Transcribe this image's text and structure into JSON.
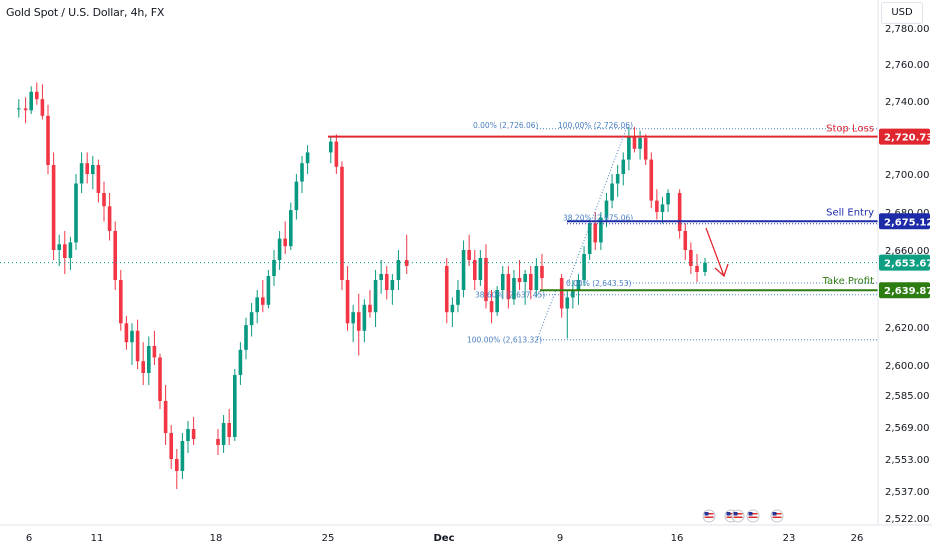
{
  "header": {
    "title": "Gold Spot / U.S. Dollar, 4h, FX",
    "currency": "USD"
  },
  "colors": {
    "bull": "#089981",
    "bear": "#f23645",
    "stop_loss": "#e0262f",
    "sell_entry": "#1e2ba8",
    "take_profit": "#2e7d12",
    "last_price": "#0e9f83",
    "fib": "#4a7fc1",
    "arrow": "#e0262f"
  },
  "chart_data": {
    "type": "candlestick",
    "symbol": "Gold Spot / U.S. Dollar",
    "timeframe": "4h",
    "exchange": "FX",
    "y_axis": {
      "ticks": [
        "2,780.00",
        "2,760.00",
        "2,740.00",
        "2,720.00",
        "2,700.00",
        "2,680.00",
        "2,660.00",
        "2,640.00",
        "2,620.00",
        "2,600.00",
        "2,585.00",
        "2,569.00",
        "2,553.00",
        "2,537.00",
        "2,522.00"
      ],
      "tick_values": [
        2780,
        2760,
        2740,
        2720,
        2700,
        2680,
        2660,
        2640,
        2620,
        2600,
        2585,
        2569,
        2553,
        2537,
        2522
      ]
    },
    "x_axis": {
      "labels": [
        "6",
        "11",
        "18",
        "25",
        "Dec",
        "9",
        "16",
        "23",
        "26"
      ],
      "label_dates": [
        "2024-11-06",
        "2024-11-11",
        "2024-11-18",
        "2024-11-25",
        "2024-12-02",
        "2024-12-09",
        "2024-12-16",
        "2024-12-23",
        "2024-12-26"
      ]
    },
    "candles": [
      {
        "date": "2024-11-05",
        "o": 2736,
        "h": 2741,
        "l": 2731,
        "c": 2736
      },
      {
        "date": "2024-11-05",
        "o": 2736,
        "h": 2742,
        "l": 2728,
        "c": 2735
      },
      {
        "date": "2024-11-06",
        "o": 2735,
        "h": 2748,
        "l": 2733,
        "c": 2745
      },
      {
        "date": "2024-11-06",
        "o": 2745,
        "h": 2750,
        "l": 2738,
        "c": 2741
      },
      {
        "date": "2024-11-06",
        "o": 2741,
        "h": 2749,
        "l": 2730,
        "c": 2732
      },
      {
        "date": "2024-11-06",
        "o": 2732,
        "h": 2738,
        "l": 2700,
        "c": 2705
      },
      {
        "date": "2024-11-06",
        "o": 2705,
        "h": 2712,
        "l": 2655,
        "c": 2660
      },
      {
        "date": "2024-11-07",
        "o": 2660,
        "h": 2668,
        "l": 2652,
        "c": 2663
      },
      {
        "date": "2024-11-07",
        "o": 2663,
        "h": 2670,
        "l": 2648,
        "c": 2656
      },
      {
        "date": "2024-11-07",
        "o": 2656,
        "h": 2667,
        "l": 2650,
        "c": 2664
      },
      {
        "date": "2024-11-07",
        "o": 2664,
        "h": 2700,
        "l": 2660,
        "c": 2695
      },
      {
        "date": "2024-11-07",
        "o": 2695,
        "h": 2712,
        "l": 2690,
        "c": 2706
      },
      {
        "date": "2024-11-08",
        "o": 2706,
        "h": 2712,
        "l": 2695,
        "c": 2700
      },
      {
        "date": "2024-11-08",
        "o": 2700,
        "h": 2710,
        "l": 2692,
        "c": 2705
      },
      {
        "date": "2024-11-08",
        "o": 2705,
        "h": 2708,
        "l": 2685,
        "c": 2690
      },
      {
        "date": "2024-11-08",
        "o": 2690,
        "h": 2696,
        "l": 2675,
        "c": 2683
      },
      {
        "date": "2024-11-11",
        "o": 2683,
        "h": 2690,
        "l": 2665,
        "c": 2670
      },
      {
        "date": "2024-11-11",
        "o": 2670,
        "h": 2675,
        "l": 2640,
        "c": 2645
      },
      {
        "date": "2024-11-11",
        "o": 2645,
        "h": 2650,
        "l": 2618,
        "c": 2622
      },
      {
        "date": "2024-11-12",
        "o": 2622,
        "h": 2626,
        "l": 2608,
        "c": 2612
      },
      {
        "date": "2024-11-12",
        "o": 2612,
        "h": 2622,
        "l": 2600,
        "c": 2618
      },
      {
        "date": "2024-11-12",
        "o": 2618,
        "h": 2624,
        "l": 2598,
        "c": 2602
      },
      {
        "date": "2024-11-13",
        "o": 2602,
        "h": 2612,
        "l": 2590,
        "c": 2596
      },
      {
        "date": "2024-11-13",
        "o": 2596,
        "h": 2615,
        "l": 2590,
        "c": 2610
      },
      {
        "date": "2024-11-13",
        "o": 2610,
        "h": 2618,
        "l": 2600,
        "c": 2604
      },
      {
        "date": "2024-11-14",
        "o": 2604,
        "h": 2606,
        "l": 2578,
        "c": 2582
      },
      {
        "date": "2024-11-14",
        "o": 2582,
        "h": 2590,
        "l": 2560,
        "c": 2566
      },
      {
        "date": "2024-11-14",
        "o": 2566,
        "h": 2570,
        "l": 2548,
        "c": 2553
      },
      {
        "date": "2024-11-15",
        "o": 2553,
        "h": 2558,
        "l": 2538,
        "c": 2547
      },
      {
        "date": "2024-11-15",
        "o": 2547,
        "h": 2566,
        "l": 2543,
        "c": 2562
      },
      {
        "date": "2024-11-15",
        "o": 2562,
        "h": 2572,
        "l": 2556,
        "c": 2568
      },
      {
        "date": "2024-11-15",
        "o": 2568,
        "h": 2574,
        "l": 2560,
        "c": 2563
      },
      {
        "date": "2024-11-18",
        "o": 2563,
        "h": 2568,
        "l": 2555,
        "c": 2560
      },
      {
        "date": "2024-11-18",
        "o": 2560,
        "h": 2575,
        "l": 2556,
        "c": 2571
      },
      {
        "date": "2024-11-18",
        "o": 2571,
        "h": 2578,
        "l": 2560,
        "c": 2564
      },
      {
        "date": "2024-11-18",
        "o": 2564,
        "h": 2598,
        "l": 2562,
        "c": 2595
      },
      {
        "date": "2024-11-19",
        "o": 2595,
        "h": 2612,
        "l": 2590,
        "c": 2608
      },
      {
        "date": "2024-11-19",
        "o": 2608,
        "h": 2625,
        "l": 2603,
        "c": 2621
      },
      {
        "date": "2024-11-19",
        "o": 2621,
        "h": 2633,
        "l": 2615,
        "c": 2628
      },
      {
        "date": "2024-11-20",
        "o": 2628,
        "h": 2640,
        "l": 2622,
        "c": 2636
      },
      {
        "date": "2024-11-20",
        "o": 2636,
        "h": 2645,
        "l": 2628,
        "c": 2632
      },
      {
        "date": "2024-11-20",
        "o": 2632,
        "h": 2650,
        "l": 2630,
        "c": 2647
      },
      {
        "date": "2024-11-21",
        "o": 2647,
        "h": 2660,
        "l": 2642,
        "c": 2655
      },
      {
        "date": "2024-11-21",
        "o": 2655,
        "h": 2670,
        "l": 2650,
        "c": 2666
      },
      {
        "date": "2024-11-21",
        "o": 2666,
        "h": 2675,
        "l": 2658,
        "c": 2662
      },
      {
        "date": "2024-11-22",
        "o": 2662,
        "h": 2685,
        "l": 2660,
        "c": 2681
      },
      {
        "date": "2024-11-22",
        "o": 2681,
        "h": 2700,
        "l": 2676,
        "c": 2696
      },
      {
        "date": "2024-11-22",
        "o": 2696,
        "h": 2710,
        "l": 2690,
        "c": 2706
      },
      {
        "date": "2024-11-22",
        "o": 2706,
        "h": 2716,
        "l": 2700,
        "c": 2712
      },
      {
        "date": "2024-11-25",
        "o": 2712,
        "h": 2721,
        "l": 2706,
        "c": 2718
      },
      {
        "date": "2024-11-25",
        "o": 2718,
        "h": 2722,
        "l": 2700,
        "c": 2704
      },
      {
        "date": "2024-11-25",
        "o": 2704,
        "h": 2707,
        "l": 2640,
        "c": 2645
      },
      {
        "date": "2024-11-26",
        "o": 2645,
        "h": 2652,
        "l": 2618,
        "c": 2622
      },
      {
        "date": "2024-11-26",
        "o": 2622,
        "h": 2632,
        "l": 2612,
        "c": 2628
      },
      {
        "date": "2024-11-26",
        "o": 2628,
        "h": 2638,
        "l": 2605,
        "c": 2618
      },
      {
        "date": "2024-11-27",
        "o": 2618,
        "h": 2635,
        "l": 2612,
        "c": 2632
      },
      {
        "date": "2024-11-27",
        "o": 2632,
        "h": 2640,
        "l": 2625,
        "c": 2628
      },
      {
        "date": "2024-11-27",
        "o": 2628,
        "h": 2650,
        "l": 2620,
        "c": 2645
      },
      {
        "date": "2024-11-28",
        "o": 2645,
        "h": 2655,
        "l": 2638,
        "c": 2648
      },
      {
        "date": "2024-11-28",
        "o": 2648,
        "h": 2652,
        "l": 2635,
        "c": 2640
      },
      {
        "date": "2024-11-28",
        "o": 2640,
        "h": 2648,
        "l": 2632,
        "c": 2645
      },
      {
        "date": "2024-11-29",
        "o": 2645,
        "h": 2660,
        "l": 2640,
        "c": 2655
      },
      {
        "date": "2024-11-29",
        "o": 2655,
        "h": 2668,
        "l": 2648,
        "c": 2652
      },
      {
        "date": "2024-12-02",
        "o": 2652,
        "h": 2656,
        "l": 2622,
        "c": 2628
      },
      {
        "date": "2024-12-02",
        "o": 2628,
        "h": 2636,
        "l": 2620,
        "c": 2632
      },
      {
        "date": "2024-12-02",
        "o": 2632,
        "h": 2645,
        "l": 2628,
        "c": 2640
      },
      {
        "date": "2024-12-03",
        "o": 2640,
        "h": 2665,
        "l": 2636,
        "c": 2660
      },
      {
        "date": "2024-12-03",
        "o": 2660,
        "h": 2668,
        "l": 2652,
        "c": 2655
      },
      {
        "date": "2024-12-03",
        "o": 2655,
        "h": 2660,
        "l": 2640,
        "c": 2645
      },
      {
        "date": "2024-12-04",
        "o": 2645,
        "h": 2660,
        "l": 2642,
        "c": 2656
      },
      {
        "date": "2024-12-04",
        "o": 2656,
        "h": 2663,
        "l": 2630,
        "c": 2634
      },
      {
        "date": "2024-12-04",
        "o": 2634,
        "h": 2640,
        "l": 2622,
        "c": 2628
      },
      {
        "date": "2024-12-05",
        "o": 2628,
        "h": 2642,
        "l": 2626,
        "c": 2640
      },
      {
        "date": "2024-12-05",
        "o": 2640,
        "h": 2652,
        "l": 2635,
        "c": 2648
      },
      {
        "date": "2024-12-05",
        "o": 2648,
        "h": 2652,
        "l": 2630,
        "c": 2635
      },
      {
        "date": "2024-12-05",
        "o": 2635,
        "h": 2650,
        "l": 2632,
        "c": 2646
      },
      {
        "date": "2024-12-06",
        "o": 2646,
        "h": 2655,
        "l": 2640,
        "c": 2644
      },
      {
        "date": "2024-12-06",
        "o": 2644,
        "h": 2650,
        "l": 2632,
        "c": 2648
      },
      {
        "date": "2024-12-06",
        "o": 2648,
        "h": 2652,
        "l": 2635,
        "c": 2640
      },
      {
        "date": "2024-12-06",
        "o": 2640,
        "h": 2656,
        "l": 2636,
        "c": 2652
      },
      {
        "date": "2024-12-06",
        "o": 2652,
        "h": 2658,
        "l": 2640,
        "c": 2646
      },
      {
        "date": "2024-12-09",
        "o": 2646,
        "h": 2648,
        "l": 2625,
        "c": 2630
      },
      {
        "date": "2024-12-09",
        "o": 2630,
        "h": 2640,
        "l": 2614,
        "c": 2636
      },
      {
        "date": "2024-12-09",
        "o": 2636,
        "h": 2645,
        "l": 2630,
        "c": 2640
      },
      {
        "date": "2024-12-09",
        "o": 2640,
        "h": 2648,
        "l": 2632,
        "c": 2645
      },
      {
        "date": "2024-12-09",
        "o": 2645,
        "h": 2662,
        "l": 2642,
        "c": 2658
      },
      {
        "date": "2024-12-10",
        "o": 2658,
        "h": 2676,
        "l": 2655,
        "c": 2674
      },
      {
        "date": "2024-12-10",
        "o": 2674,
        "h": 2680,
        "l": 2660,
        "c": 2664
      },
      {
        "date": "2024-12-10",
        "o": 2664,
        "h": 2680,
        "l": 2660,
        "c": 2677
      },
      {
        "date": "2024-12-10",
        "o": 2677,
        "h": 2690,
        "l": 2672,
        "c": 2686
      },
      {
        "date": "2024-12-11",
        "o": 2686,
        "h": 2700,
        "l": 2682,
        "c": 2695
      },
      {
        "date": "2024-12-11",
        "o": 2695,
        "h": 2705,
        "l": 2688,
        "c": 2700
      },
      {
        "date": "2024-12-11",
        "o": 2700,
        "h": 2712,
        "l": 2694,
        "c": 2708
      },
      {
        "date": "2024-12-12",
        "o": 2708,
        "h": 2726,
        "l": 2702,
        "c": 2721
      },
      {
        "date": "2024-12-12",
        "o": 2721,
        "h": 2726,
        "l": 2712,
        "c": 2714
      },
      {
        "date": "2024-12-12",
        "o": 2714,
        "h": 2724,
        "l": 2708,
        "c": 2720
      },
      {
        "date": "2024-12-12",
        "o": 2720,
        "h": 2722,
        "l": 2705,
        "c": 2708
      },
      {
        "date": "2024-12-13",
        "o": 2708,
        "h": 2712,
        "l": 2682,
        "c": 2686
      },
      {
        "date": "2024-12-13",
        "o": 2686,
        "h": 2692,
        "l": 2676,
        "c": 2680
      },
      {
        "date": "2024-12-13",
        "o": 2680,
        "h": 2688,
        "l": 2674,
        "c": 2684
      },
      {
        "date": "2024-12-13",
        "o": 2684,
        "h": 2692,
        "l": 2680,
        "c": 2690
      },
      {
        "date": "2024-12-16",
        "o": 2690,
        "h": 2692,
        "l": 2666,
        "c": 2670
      },
      {
        "date": "2024-12-16",
        "o": 2670,
        "h": 2674,
        "l": 2655,
        "c": 2660
      },
      {
        "date": "2024-12-16",
        "o": 2660,
        "h": 2664,
        "l": 2648,
        "c": 2652
      },
      {
        "date": "2024-12-17",
        "o": 2652,
        "h": 2658,
        "l": 2644,
        "c": 2649
      },
      {
        "date": "2024-12-17",
        "o": 2649,
        "h": 2656,
        "l": 2647,
        "c": 2653.67
      }
    ],
    "levels": [
      {
        "name": "Stop Loss",
        "value": "2,720.73",
        "price": 2720.73
      },
      {
        "name": "Sell Entry",
        "value": "2,675.12",
        "price": 2675.12
      },
      {
        "name": "Take Profit",
        "value": "2,639.87",
        "price": 2639.87
      }
    ],
    "last_price": {
      "value": "2,653.67",
      "price": 2653.67
    },
    "fibonacci": {
      "upper": [
        {
          "label": "0.00% (2,726.06)",
          "price": 2726.06
        },
        {
          "label": "100.00% (2,726.06)",
          "price": 2726.06
        },
        {
          "label": "38.20% (2,675.06)",
          "price": 2675.06
        },
        {
          "label": "0.00% (2,643.53)",
          "price": 2643.53
        }
      ],
      "lower": [
        {
          "label": "38.60% (2,637.45)",
          "price": 2637.45
        },
        {
          "label": "100.00% (2,613.32)",
          "price": 2613.32
        }
      ]
    },
    "projection": "down"
  }
}
